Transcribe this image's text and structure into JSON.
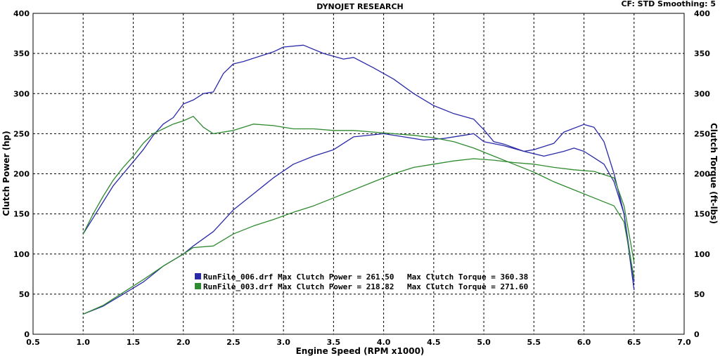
{
  "header": {
    "title": "DYNOJET RESEARCH",
    "settings": "CF: STD  Smoothing: 5"
  },
  "chart_data": {
    "type": "line",
    "xlabel": "Engine Speed (RPM x1000)",
    "ylabel_left": "Clutch Power (hp)",
    "ylabel_right": "Clutch Torque (ft-lbs)",
    "xlim": [
      0.5,
      7.0
    ],
    "ylim": [
      0,
      400
    ],
    "x_ticks": [
      "0.5",
      "1.0",
      "1.5",
      "2.0",
      "2.5",
      "3.0",
      "3.5",
      "4.0",
      "4.5",
      "5.0",
      "5.5",
      "6.0",
      "6.5",
      "7.0"
    ],
    "y_ticks": [
      "0",
      "50",
      "100",
      "150",
      "200",
      "250",
      "300",
      "350",
      "400"
    ],
    "grid": true,
    "legend": [
      {
        "text": "RunFile_006.drf Max Clutch Power = 261.50",
        "text2": "Max Clutch Torque = 360.38",
        "color": "#2a2aa8"
      },
      {
        "text": "RunFile_003.drf Max Clutch Power = 218.82",
        "text2": "Max Clutch Torque = 271.60",
        "color": "#2e8a2e"
      }
    ],
    "series": [
      {
        "name": "RunFile_006.drf",
        "measure": "power",
        "color": "#2a2aa8",
        "points": [
          [
            1.0,
            25
          ],
          [
            1.2,
            35
          ],
          [
            1.4,
            50
          ],
          [
            1.6,
            65
          ],
          [
            1.8,
            85
          ],
          [
            2.0,
            100
          ],
          [
            2.1,
            110
          ],
          [
            2.3,
            128
          ],
          [
            2.5,
            155
          ],
          [
            2.7,
            175
          ],
          [
            2.9,
            195
          ],
          [
            3.1,
            212
          ],
          [
            3.3,
            222
          ],
          [
            3.5,
            230
          ],
          [
            3.7,
            246
          ],
          [
            4.0,
            250
          ],
          [
            4.2,
            246
          ],
          [
            4.4,
            242
          ],
          [
            4.6,
            244
          ],
          [
            4.8,
            248
          ],
          [
            4.9,
            250
          ],
          [
            5.0,
            240
          ],
          [
            5.2,
            235
          ],
          [
            5.4,
            228
          ],
          [
            5.5,
            230
          ],
          [
            5.7,
            238
          ],
          [
            5.8,
            252
          ],
          [
            6.0,
            261.5
          ],
          [
            6.1,
            258
          ],
          [
            6.2,
            240
          ],
          [
            6.3,
            200
          ],
          [
            6.4,
            150
          ],
          [
            6.5,
            65
          ]
        ]
      },
      {
        "name": "RunFile_006.drf",
        "measure": "torque",
        "color": "#2a2aa8",
        "points": [
          [
            1.0,
            125
          ],
          [
            1.1,
            145
          ],
          [
            1.2,
            165
          ],
          [
            1.3,
            185
          ],
          [
            1.4,
            200
          ],
          [
            1.5,
            215
          ],
          [
            1.6,
            230
          ],
          [
            1.7,
            248
          ],
          [
            1.8,
            262
          ],
          [
            1.9,
            270
          ],
          [
            2.0,
            287
          ],
          [
            2.1,
            292
          ],
          [
            2.2,
            300
          ],
          [
            2.3,
            302
          ],
          [
            2.4,
            325
          ],
          [
            2.5,
            337
          ],
          [
            2.6,
            340
          ],
          [
            2.7,
            344
          ],
          [
            2.8,
            348
          ],
          [
            2.9,
            352
          ],
          [
            3.0,
            358
          ],
          [
            3.2,
            360.38
          ],
          [
            3.4,
            350
          ],
          [
            3.6,
            343
          ],
          [
            3.7,
            345
          ],
          [
            3.9,
            332
          ],
          [
            4.1,
            318
          ],
          [
            4.3,
            300
          ],
          [
            4.5,
            285
          ],
          [
            4.7,
            275
          ],
          [
            4.9,
            268
          ],
          [
            5.0,
            255
          ],
          [
            5.1,
            240
          ],
          [
            5.2,
            237
          ],
          [
            5.4,
            228
          ],
          [
            5.6,
            222
          ],
          [
            5.8,
            228
          ],
          [
            5.9,
            232
          ],
          [
            6.0,
            228
          ],
          [
            6.1,
            220
          ],
          [
            6.2,
            212
          ],
          [
            6.3,
            190
          ],
          [
            6.4,
            150
          ],
          [
            6.5,
            55
          ]
        ]
      },
      {
        "name": "RunFile_003.drf",
        "measure": "power",
        "color": "#2e8a2e",
        "points": [
          [
            1.0,
            25
          ],
          [
            1.2,
            36
          ],
          [
            1.4,
            52
          ],
          [
            1.6,
            68
          ],
          [
            1.8,
            85
          ],
          [
            2.0,
            100
          ],
          [
            2.1,
            108
          ],
          [
            2.3,
            110
          ],
          [
            2.5,
            125
          ],
          [
            2.7,
            135
          ],
          [
            2.9,
            143
          ],
          [
            3.1,
            152
          ],
          [
            3.3,
            160
          ],
          [
            3.5,
            170
          ],
          [
            3.7,
            180
          ],
          [
            3.9,
            190
          ],
          [
            4.1,
            200
          ],
          [
            4.3,
            208
          ],
          [
            4.5,
            212
          ],
          [
            4.7,
            216
          ],
          [
            4.9,
            218.82
          ],
          [
            5.1,
            217
          ],
          [
            5.3,
            214
          ],
          [
            5.5,
            212
          ],
          [
            5.7,
            208
          ],
          [
            5.9,
            205
          ],
          [
            6.1,
            203
          ],
          [
            6.3,
            195
          ],
          [
            6.4,
            160
          ],
          [
            6.5,
            90
          ]
        ]
      },
      {
        "name": "RunFile_003.drf",
        "measure": "torque",
        "color": "#2e8a2e",
        "points": [
          [
            1.0,
            125
          ],
          [
            1.1,
            150
          ],
          [
            1.2,
            172
          ],
          [
            1.3,
            192
          ],
          [
            1.4,
            208
          ],
          [
            1.5,
            222
          ],
          [
            1.6,
            238
          ],
          [
            1.7,
            250
          ],
          [
            1.8,
            256
          ],
          [
            1.9,
            262
          ],
          [
            2.0,
            266
          ],
          [
            2.1,
            271.6
          ],
          [
            2.2,
            258
          ],
          [
            2.3,
            250
          ],
          [
            2.5,
            254
          ],
          [
            2.7,
            262
          ],
          [
            2.9,
            260
          ],
          [
            3.1,
            256
          ],
          [
            3.3,
            256
          ],
          [
            3.5,
            254
          ],
          [
            3.7,
            254
          ],
          [
            3.9,
            252
          ],
          [
            4.1,
            250
          ],
          [
            4.3,
            248
          ],
          [
            4.5,
            245
          ],
          [
            4.7,
            240
          ],
          [
            4.9,
            232
          ],
          [
            5.1,
            222
          ],
          [
            5.3,
            212
          ],
          [
            5.5,
            202
          ],
          [
            5.7,
            190
          ],
          [
            5.9,
            180
          ],
          [
            6.1,
            170
          ],
          [
            6.3,
            160
          ],
          [
            6.4,
            140
          ],
          [
            6.5,
            70
          ]
        ]
      }
    ]
  }
}
